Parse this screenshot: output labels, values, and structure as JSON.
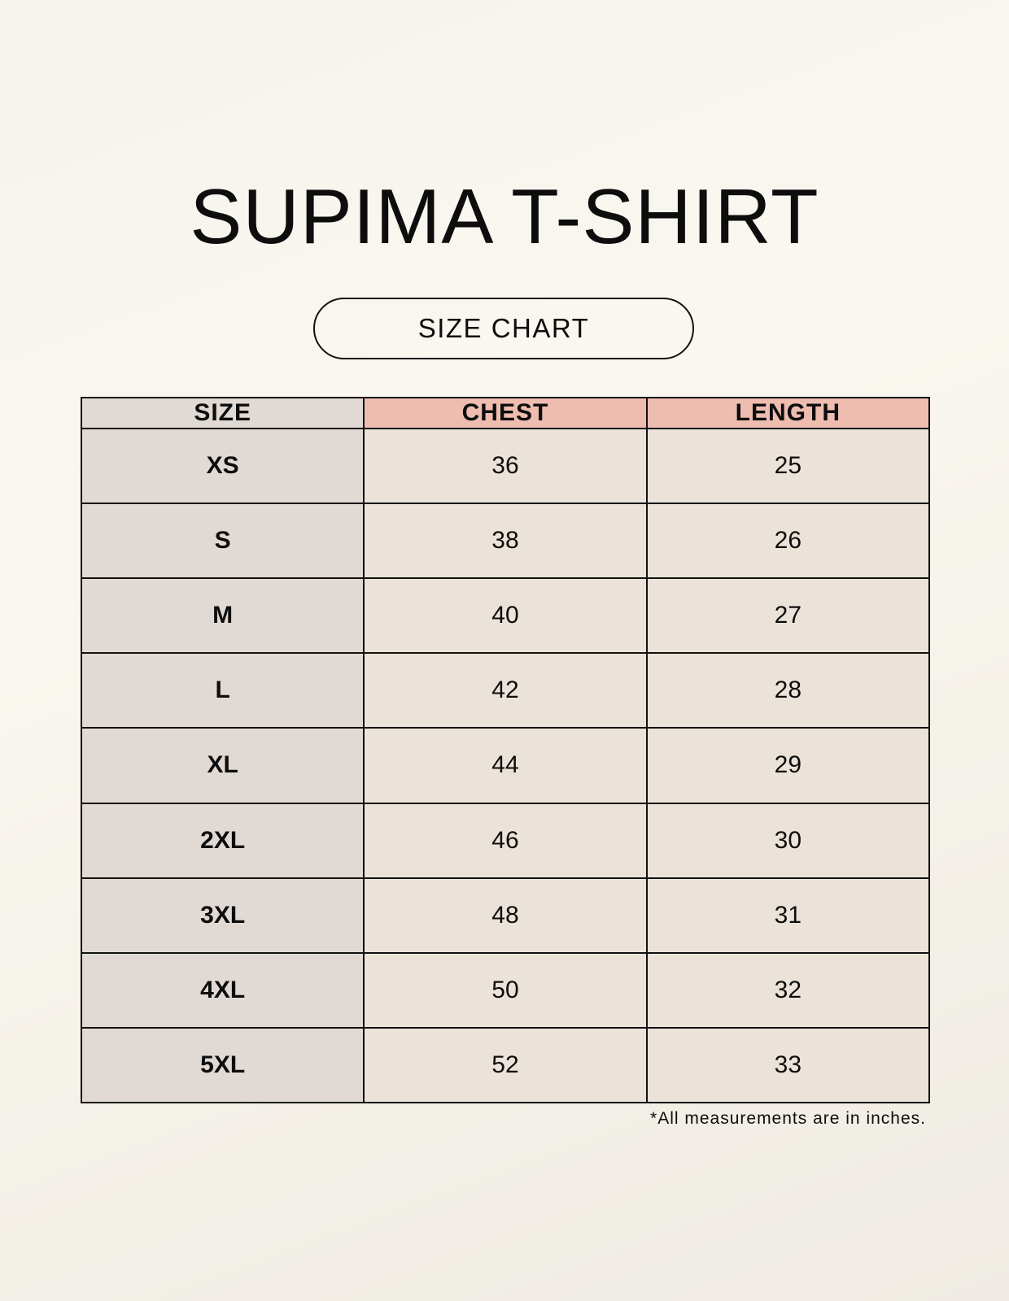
{
  "title": "SUPIMA T-SHIRT",
  "subtitle": "SIZE CHART",
  "table": {
    "headers": [
      "SIZE",
      "CHEST",
      "LENGTH"
    ],
    "rows": [
      [
        "XS",
        "36",
        "25"
      ],
      [
        "S",
        "38",
        "26"
      ],
      [
        "M",
        "40",
        "27"
      ],
      [
        "L",
        "42",
        "28"
      ],
      [
        "XL",
        "44",
        "29"
      ],
      [
        "2XL",
        "46",
        "30"
      ],
      [
        "3XL",
        "48",
        "31"
      ],
      [
        "4XL",
        "50",
        "32"
      ],
      [
        "5XL",
        "52",
        "33"
      ]
    ]
  },
  "footnote": "*All measurements are in inches.",
  "colors": {
    "size_column": "#e1d9d4",
    "header_accent": "#eebdb0",
    "cell": "#ebe3d9"
  }
}
